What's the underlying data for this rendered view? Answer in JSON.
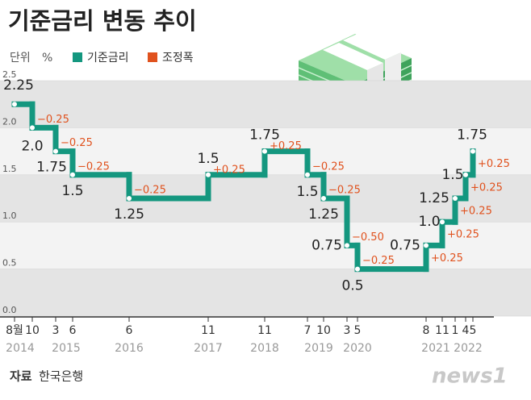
{
  "header": {
    "title": "기준금리 변동 추이"
  },
  "chart_data": {
    "type": "step",
    "unit_label": "단위",
    "unit": "%",
    "categories": [
      "8월",
      "10",
      "3",
      "6",
      "6",
      "11",
      "11",
      "7",
      "10",
      "3",
      "5",
      "8",
      "11",
      "1",
      "4",
      "5"
    ],
    "years": [
      "2014",
      "2015",
      "2016",
      "2017",
      "2018",
      "2019",
      "2020",
      "2021",
      "2022"
    ],
    "series": [
      {
        "name": "기준금리",
        "color": "#14977f",
        "values": [
          2.25,
          2.0,
          1.75,
          1.5,
          1.25,
          1.5,
          1.75,
          1.5,
          1.25,
          0.75,
          0.5,
          0.75,
          1.0,
          1.25,
          1.5,
          1.75
        ],
        "value_labels": [
          "2.25",
          "2.0",
          "1.75",
          "1.5",
          "1.25",
          "1.5",
          "1.75",
          "1.5",
          "1.25",
          "0.75",
          "0.5",
          "0.75",
          "1.0",
          "1.25",
          "1.5",
          "1.75"
        ]
      }
    ],
    "changes": {
      "name": "조정폭",
      "color": "#e0521e",
      "labels": [
        null,
        "−0.25",
        "−0.25",
        "−0.25",
        "−0.25",
        "+0.25",
        "+0.25",
        "−0.25",
        "−0.25",
        "−0.50",
        "−0.25",
        "+0.25",
        "+0.25",
        "+0.25",
        "+0.25",
        "+0.25"
      ]
    },
    "ylim": [
      0,
      2.5
    ],
    "yticks": [
      {
        "value": 0,
        "label": "0.0"
      },
      0.5,
      {
        "value": 1,
        "label": "1.0"
      },
      1.5,
      {
        "value": 2,
        "label": "2.0"
      },
      2.5
    ],
    "bands": true
  },
  "footer": {
    "source_label": "자료",
    "source": "한국은행",
    "logo": "news1"
  }
}
